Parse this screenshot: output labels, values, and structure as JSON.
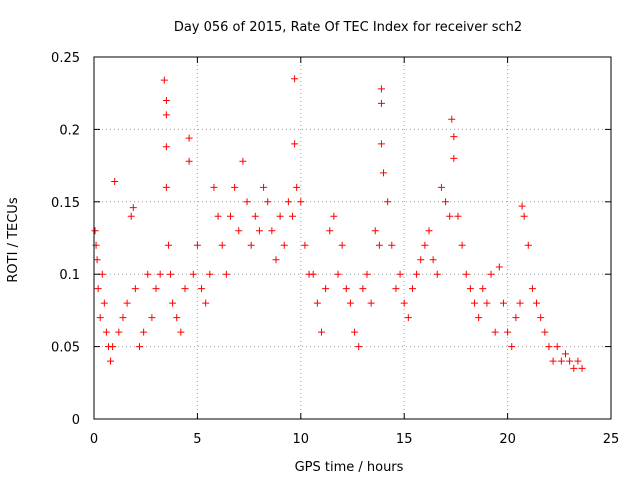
{
  "chart_data": {
    "type": "scatter",
    "title": "Day 056 of 2015, Rate Of TEC Index for receiver sch2",
    "xlabel": "GPS time / hours",
    "ylabel": "ROTI / TECUs",
    "xlim": [
      0,
      25
    ],
    "ylim": [
      0,
      0.25
    ],
    "x_ticks": [
      0,
      5,
      10,
      15,
      20,
      25
    ],
    "y_ticks": [
      0,
      0.05,
      0.1,
      0.15,
      0.2,
      0.25
    ],
    "x_tick_labels": [
      "0",
      "5",
      "10",
      "15",
      "20",
      "25"
    ],
    "y_tick_labels": [
      "0",
      "0.05",
      "0.1",
      "0.15",
      "0.2",
      "0.25"
    ],
    "grid": true,
    "marker": "+",
    "marker_color": "#ff0000",
    "series": [
      {
        "x": [
          0.05,
          0.1,
          0.15,
          0.2,
          0.3,
          0.4,
          0.5,
          0.6,
          0.7,
          0.8,
          0.9,
          1.0,
          1.2,
          1.4,
          1.6,
          1.8,
          1.9,
          2.0,
          2.2,
          2.4,
          2.6,
          2.8,
          3.0,
          3.2,
          3.4,
          3.5,
          3.5,
          3.5,
          3.5,
          3.6,
          3.7,
          3.8,
          4.0,
          4.2,
          4.4,
          4.6,
          4.6,
          4.8,
          5.0,
          5.2,
          5.4,
          5.6,
          5.8,
          6.0,
          6.2,
          6.4,
          6.6,
          6.8,
          7.0,
          7.2,
          7.4,
          7.6,
          7.8,
          8.0,
          8.2,
          8.4,
          8.6,
          8.8,
          9.0,
          9.2,
          9.4,
          9.6,
          9.7,
          9.7,
          9.8,
          10.0,
          10.2,
          10.4,
          10.6,
          10.8,
          11.0,
          11.2,
          11.4,
          11.6,
          11.8,
          12.0,
          12.2,
          12.4,
          12.6,
          12.8,
          13.0,
          13.2,
          13.4,
          13.6,
          13.8,
          13.9,
          13.9,
          13.9,
          14.0,
          14.2,
          14.4,
          14.6,
          14.8,
          15.0,
          15.2,
          15.4,
          15.6,
          15.8,
          16.0,
          16.2,
          16.4,
          16.6,
          16.8,
          17.0,
          17.2,
          17.3,
          17.4,
          17.4,
          17.6,
          17.8,
          18.0,
          18.2,
          18.4,
          18.6,
          18.8,
          19.0,
          19.2,
          19.4,
          19.6,
          19.8,
          20.0,
          20.2,
          20.4,
          20.6,
          20.7,
          20.8,
          21.0,
          21.2,
          21.4,
          21.6,
          21.8,
          22.0,
          22.2,
          22.4,
          22.6,
          22.8,
          23.0,
          23.2,
          23.4,
          23.6
        ],
        "y": [
          0.13,
          0.12,
          0.11,
          0.09,
          0.07,
          0.1,
          0.08,
          0.06,
          0.05,
          0.04,
          0.05,
          0.164,
          0.06,
          0.07,
          0.08,
          0.14,
          0.146,
          0.09,
          0.05,
          0.06,
          0.1,
          0.07,
          0.09,
          0.1,
          0.234,
          0.22,
          0.21,
          0.188,
          0.16,
          0.12,
          0.1,
          0.08,
          0.07,
          0.06,
          0.09,
          0.194,
          0.178,
          0.1,
          0.12,
          0.09,
          0.08,
          0.1,
          0.16,
          0.14,
          0.12,
          0.1,
          0.14,
          0.16,
          0.13,
          0.178,
          0.15,
          0.12,
          0.14,
          0.13,
          0.16,
          0.15,
          0.13,
          0.11,
          0.14,
          0.12,
          0.15,
          0.14,
          0.235,
          0.19,
          0.16,
          0.15,
          0.12,
          0.1,
          0.1,
          0.08,
          0.06,
          0.09,
          0.13,
          0.14,
          0.1,
          0.12,
          0.09,
          0.08,
          0.06,
          0.05,
          0.09,
          0.1,
          0.08,
          0.13,
          0.12,
          0.228,
          0.218,
          0.19,
          0.17,
          0.15,
          0.12,
          0.09,
          0.1,
          0.08,
          0.07,
          0.09,
          0.1,
          0.11,
          0.12,
          0.13,
          0.11,
          0.1,
          0.16,
          0.15,
          0.14,
          0.207,
          0.195,
          0.18,
          0.14,
          0.12,
          0.1,
          0.09,
          0.08,
          0.07,
          0.09,
          0.08,
          0.1,
          0.06,
          0.105,
          0.08,
          0.06,
          0.05,
          0.07,
          0.08,
          0.147,
          0.14,
          0.12,
          0.09,
          0.08,
          0.07,
          0.06,
          0.05,
          0.04,
          0.05,
          0.04,
          0.045,
          0.04,
          0.035,
          0.04,
          0.035
        ]
      }
    ]
  }
}
